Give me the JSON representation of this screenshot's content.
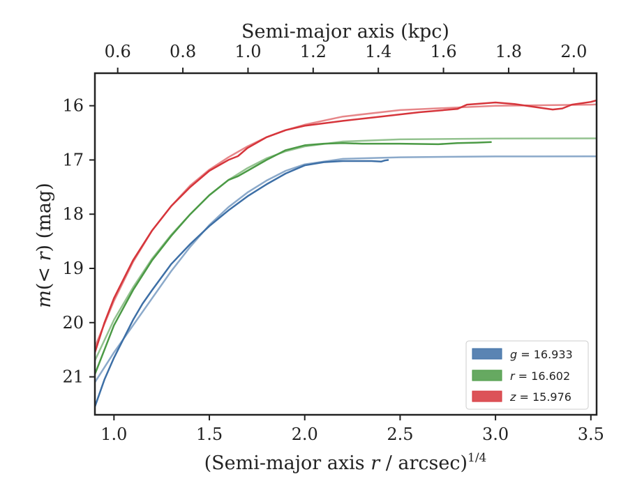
{
  "chart_data": {
    "type": "line",
    "title": "",
    "xlabel_prefix": "(Semi-major axis ",
    "xlabel_var": "r",
    "xlabel_suffix": " / arcsec)",
    "xlabel_exponent": "1/4",
    "ylabel_m": "m",
    "ylabel_mid": "(< ",
    "ylabel_r": "r",
    "ylabel_end": ") (mag)",
    "top_xlabel": "Semi-major axis (kpc)",
    "xlim": [
      0.9,
      3.53
    ],
    "ylim": [
      21.7,
      15.4
    ],
    "y_inverted": true,
    "top_xlim": [
      0.53,
      2.07
    ],
    "xticks": [
      1.0,
      1.5,
      2.0,
      2.5,
      3.0,
      3.5
    ],
    "xtick_labels": [
      "1.0",
      "1.5",
      "2.0",
      "2.5",
      "3.0",
      "3.5"
    ],
    "yticks": [
      16,
      17,
      18,
      19,
      20,
      21
    ],
    "ytick_labels": [
      "16",
      "17",
      "18",
      "19",
      "20",
      "21"
    ],
    "top_xticks": [
      0.6,
      0.8,
      1.0,
      1.2,
      1.4,
      1.6,
      1.8,
      2.0
    ],
    "top_xtick_labels": [
      "0.6",
      "0.8",
      "1.0",
      "1.2",
      "1.4",
      "1.6",
      "1.8",
      "2.0"
    ],
    "legend_position": "lower-right",
    "series": [
      {
        "name": "g",
        "value": "16.933",
        "color": "#3d6fa6",
        "data_x": [
          0.9,
          0.95,
          1.0,
          1.05,
          1.1,
          1.15,
          1.2,
          1.3,
          1.4,
          1.5,
          1.6,
          1.7,
          1.8,
          1.9,
          2.0,
          2.1,
          2.2,
          2.3,
          2.35,
          2.4,
          2.42,
          2.44
        ],
        "data_y": [
          21.55,
          21.05,
          20.65,
          20.3,
          19.95,
          19.65,
          19.4,
          18.92,
          18.55,
          18.22,
          17.93,
          17.67,
          17.45,
          17.25,
          17.1,
          17.04,
          17.02,
          17.02,
          17.02,
          17.03,
          17.01,
          17.0
        ],
        "fit_x": [
          0.9,
          1.0,
          1.1,
          1.2,
          1.3,
          1.4,
          1.5,
          1.6,
          1.7,
          1.8,
          1.9,
          2.0,
          2.2,
          2.5,
          3.0,
          3.5,
          3.53
        ],
        "fit_y": [
          21.1,
          20.55,
          20.05,
          19.55,
          19.05,
          18.6,
          18.2,
          17.87,
          17.6,
          17.38,
          17.2,
          17.08,
          16.98,
          16.95,
          16.935,
          16.933,
          16.933
        ]
      },
      {
        "name": "r",
        "value": "16.602",
        "color": "#4b9a45",
        "data_x": [
          0.9,
          0.95,
          1.0,
          1.1,
          1.2,
          1.3,
          1.4,
          1.5,
          1.6,
          1.65,
          1.7,
          1.8,
          1.9,
          2.0,
          2.1,
          2.2,
          2.3,
          2.5,
          2.7,
          2.8,
          2.9,
          2.98
        ],
        "data_y": [
          20.95,
          20.5,
          20.05,
          19.4,
          18.85,
          18.4,
          18.0,
          17.65,
          17.37,
          17.3,
          17.2,
          17.0,
          16.82,
          16.73,
          16.7,
          16.69,
          16.7,
          16.7,
          16.71,
          16.69,
          16.68,
          16.67
        ],
        "fit_x": [
          0.9,
          1.0,
          1.1,
          1.2,
          1.3,
          1.4,
          1.5,
          1.6,
          1.7,
          1.8,
          1.9,
          2.0,
          2.2,
          2.5,
          3.0,
          3.5,
          3.53
        ],
        "fit_y": [
          20.7,
          19.95,
          19.35,
          18.82,
          18.38,
          18.0,
          17.65,
          17.37,
          17.15,
          16.97,
          16.84,
          16.75,
          16.66,
          16.62,
          16.605,
          16.602,
          16.602
        ]
      },
      {
        "name": "z",
        "value": "15.976",
        "color": "#d6353b",
        "data_x": [
          0.9,
          0.95,
          1.0,
          1.1,
          1.2,
          1.3,
          1.4,
          1.5,
          1.6,
          1.65,
          1.7,
          1.8,
          1.9,
          2.0,
          2.2,
          2.4,
          2.6,
          2.8,
          2.85,
          3.0,
          3.1,
          3.2,
          3.3,
          3.35,
          3.4,
          3.5,
          3.53
        ],
        "data_y": [
          20.55,
          20.0,
          19.55,
          18.85,
          18.3,
          17.85,
          17.5,
          17.2,
          17.0,
          16.93,
          16.78,
          16.58,
          16.45,
          16.37,
          16.28,
          16.2,
          16.12,
          16.06,
          15.98,
          15.94,
          15.97,
          16.02,
          16.07,
          16.05,
          15.98,
          15.93,
          15.9
        ],
        "fit_x": [
          0.9,
          1.0,
          1.1,
          1.2,
          1.3,
          1.4,
          1.5,
          1.6,
          1.7,
          1.8,
          1.9,
          2.0,
          2.2,
          2.5,
          3.0,
          3.5,
          3.53
        ],
        "fit_y": [
          20.45,
          19.6,
          18.88,
          18.3,
          17.85,
          17.47,
          17.18,
          16.95,
          16.75,
          16.58,
          16.45,
          16.35,
          16.2,
          16.08,
          16.0,
          15.98,
          15.976
        ]
      }
    ]
  }
}
